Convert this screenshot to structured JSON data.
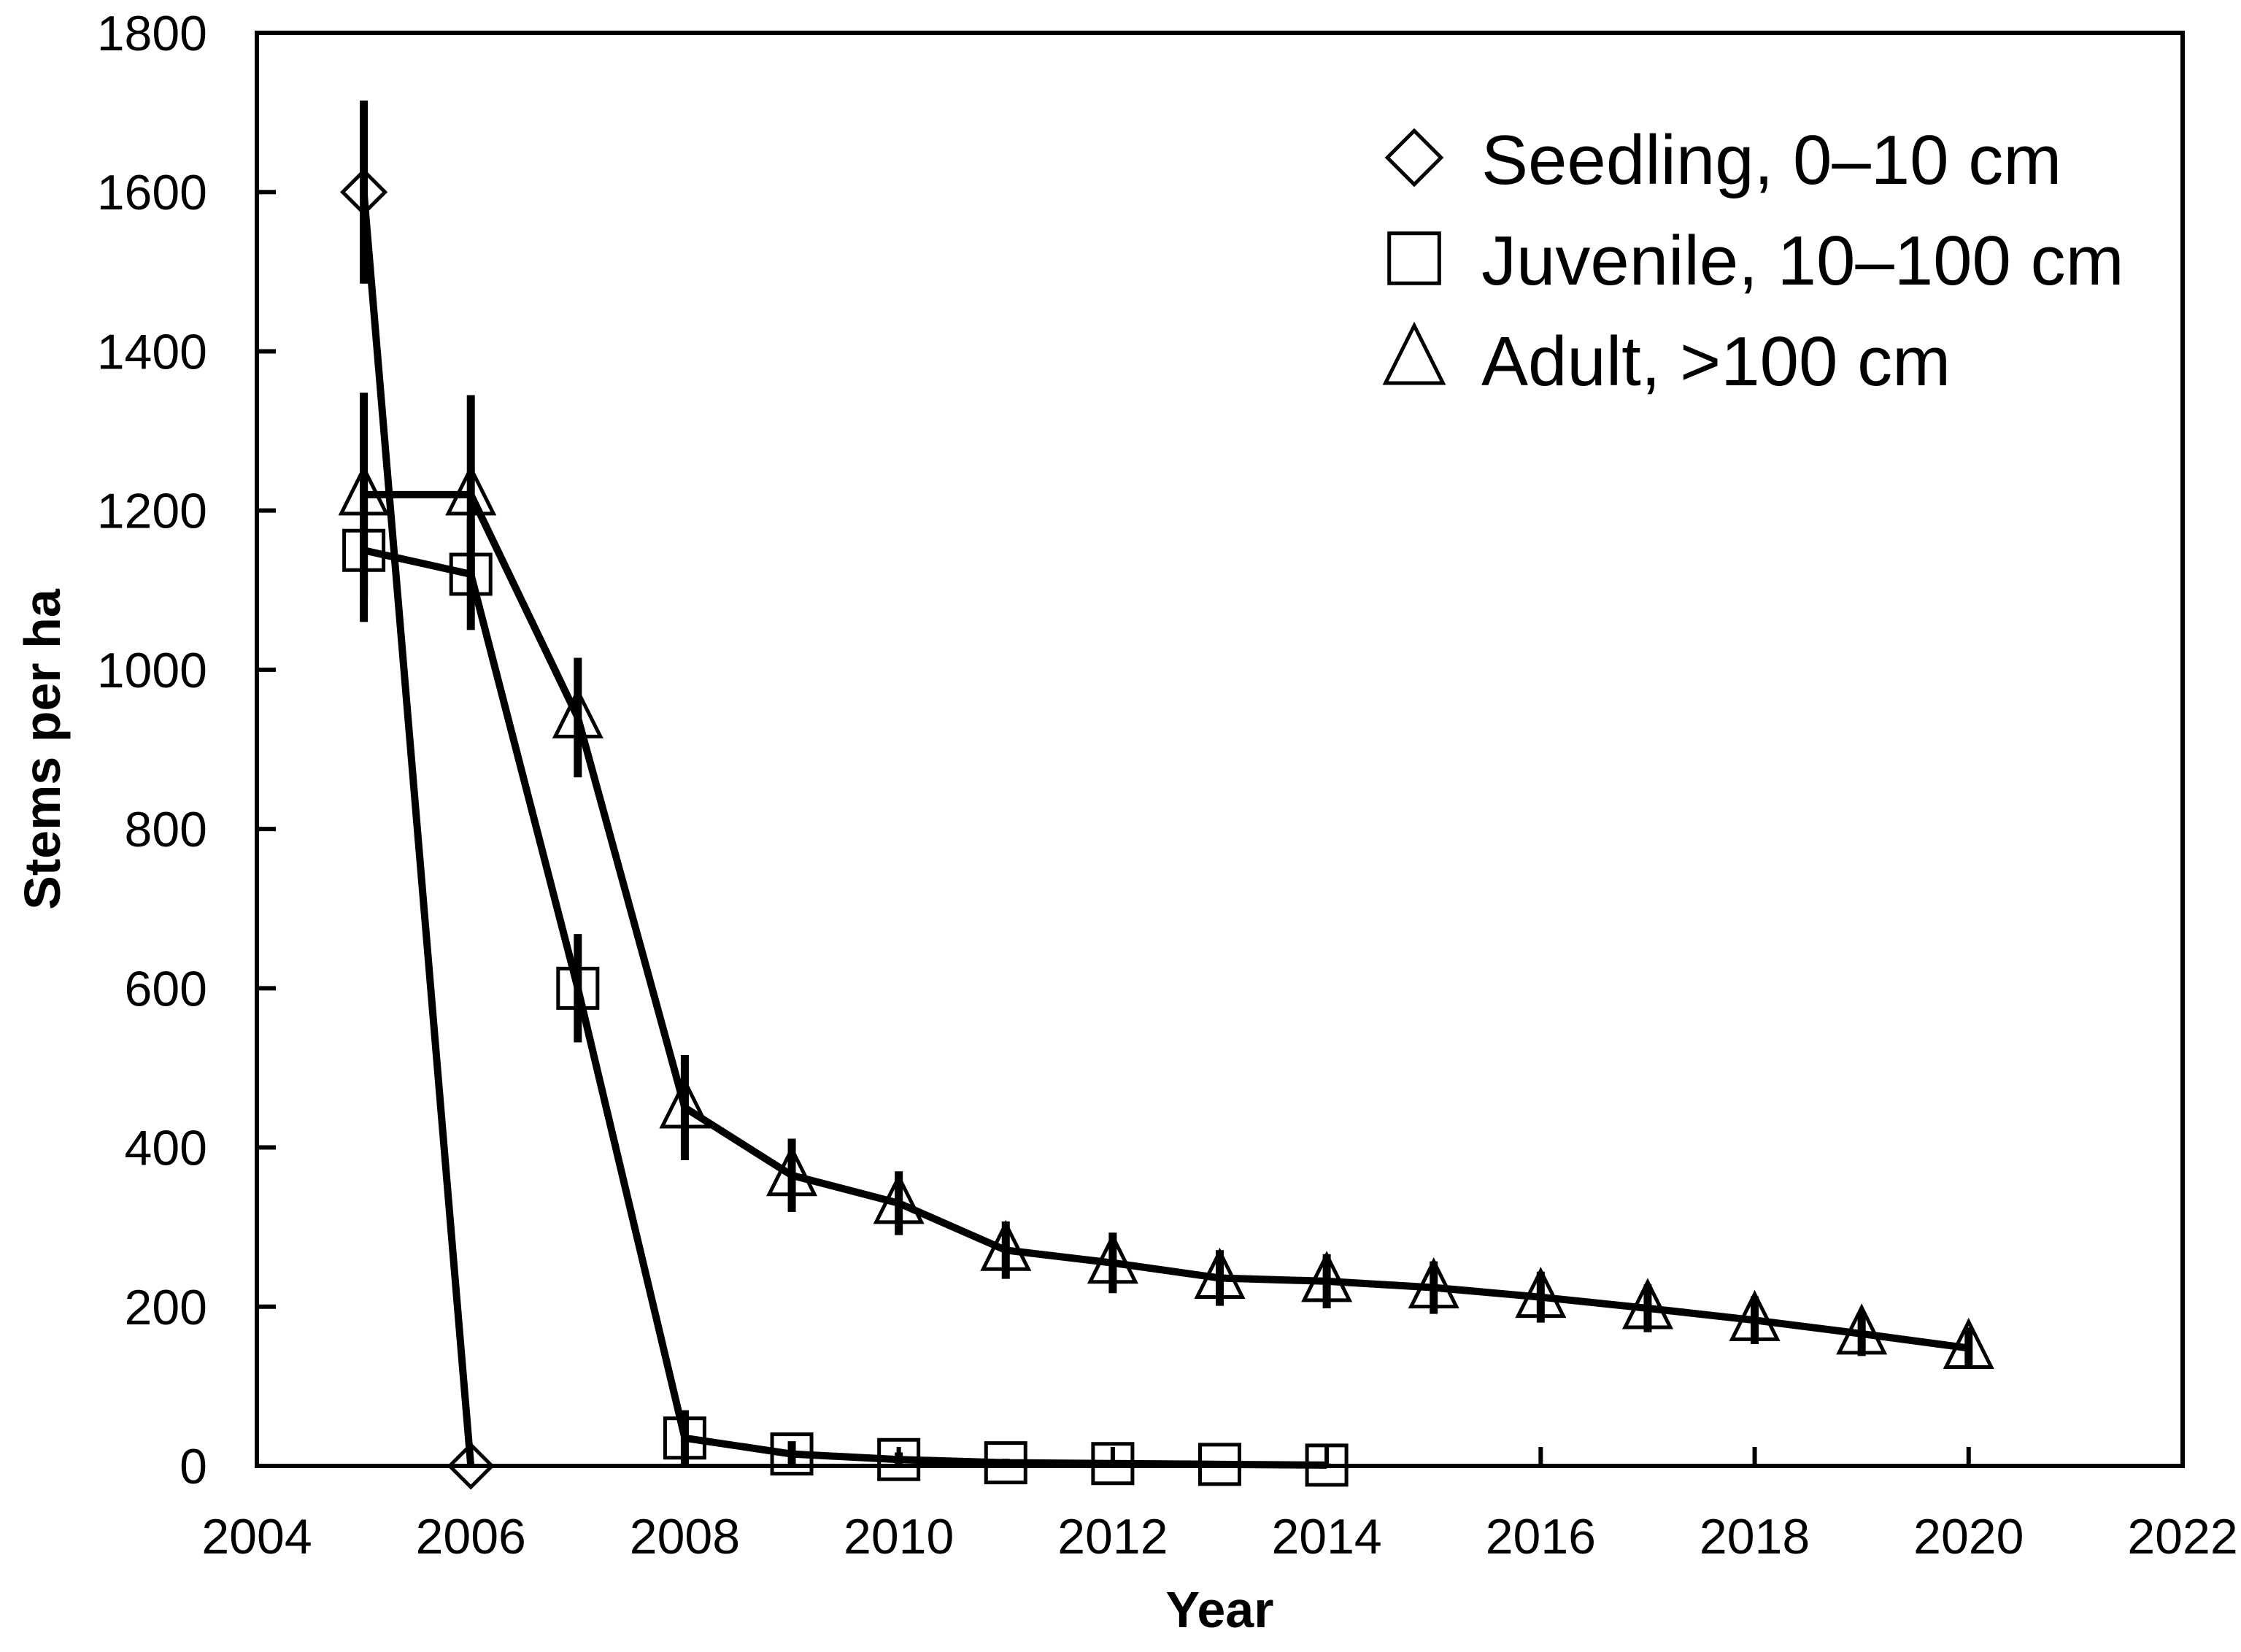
{
  "figure": {
    "background": "#ffffff",
    "ink_color": "#000000"
  },
  "chart_data": {
    "type": "line",
    "title": "",
    "xlabel": "Year",
    "ylabel": "Stems per ha",
    "xlim": [
      2004,
      2022
    ],
    "ylim": [
      0,
      1800
    ],
    "x_ticks": [
      2004,
      2006,
      2008,
      2010,
      2012,
      2014,
      2016,
      2018,
      2020,
      2022
    ],
    "y_ticks": [
      0,
      200,
      400,
      600,
      800,
      1000,
      1200,
      1400,
      1600,
      1800
    ],
    "grid": false,
    "legend_position": "top-right",
    "error_bars": true,
    "series": [
      {
        "name": "Seedling, 0–10 cm",
        "marker": "diamond",
        "x": [
          2005,
          2006
        ],
        "values": [
          1600,
          0
        ],
        "errors": [
          115,
          0
        ]
      },
      {
        "name": "Juvenile, 10–100 cm",
        "marker": "square",
        "x": [
          2005,
          2006,
          2007,
          2008,
          2009,
          2010,
          2011,
          2012,
          2013,
          2014
        ],
        "values": [
          1150,
          1120,
          600,
          35,
          15,
          8,
          4,
          3,
          2,
          1
        ],
        "errors": [
          90,
          70,
          68,
          35,
          16,
          9,
          5,
          4,
          3,
          2
        ]
      },
      {
        "name": "Adult, >100 cm",
        "marker": "triangle",
        "x": [
          2005,
          2006,
          2007,
          2008,
          2009,
          2010,
          2011,
          2012,
          2013,
          2014,
          2015,
          2016,
          2017,
          2018,
          2019,
          2020
        ],
        "values": [
          1220,
          1220,
          940,
          450,
          365,
          330,
          271,
          255,
          236,
          232,
          224,
          212,
          198,
          183,
          166,
          148
        ],
        "errors": [
          128,
          125,
          75,
          66,
          46,
          40,
          36,
          38,
          35,
          34,
          33,
          32,
          30,
          30,
          28,
          26
        ]
      }
    ]
  }
}
